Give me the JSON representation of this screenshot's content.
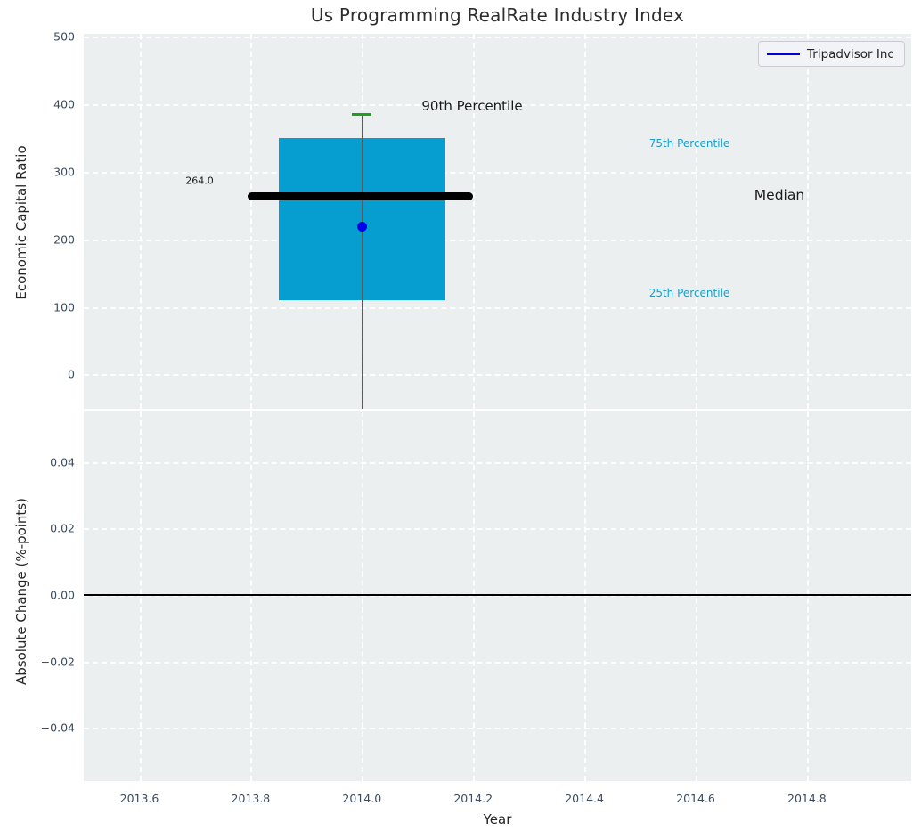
{
  "title": "Us Programming RealRate Industry Index",
  "colors": {
    "figure_bg": "#ffffff",
    "plot_bg": "#eceff0",
    "grid": "#ffffff",
    "box_fill": "#069dd1",
    "median_line": "#000000",
    "whisker": "#5a5a5a",
    "percentile_cap": "#1f9e1f",
    "company_dot": "#0000ee",
    "legend_line": "#0000dd",
    "tick_label": "#3b4c5e",
    "axis_label": "#262626",
    "annotation_cyan": "#1b9ecb",
    "annotation_dark": "#1a1a1a",
    "zero_line": "#000000"
  },
  "chart_data": [
    {
      "type": "boxplot",
      "title": "Us Programming RealRate Industry Index",
      "ylabel": "Economic Capital Ratio",
      "legend": [
        {
          "label": "Tripadvisor Inc",
          "color": "#0000dd"
        }
      ],
      "legend_position": "upper right",
      "grid": "white dashed",
      "xlim": [
        2013.5,
        2014.9875
      ],
      "ylim": [
        -51,
        504
      ],
      "yticks": [
        0,
        100,
        200,
        300,
        400,
        500
      ],
      "ytick_labels": [
        "0",
        "100",
        "200",
        "300",
        "400",
        "500"
      ],
      "xticks": [
        2013.6,
        2013.8,
        2014.0,
        2014.2,
        2014.4,
        2014.6,
        2014.8
      ],
      "xtick_labels": [
        "2013.6",
        "2013.8",
        "2014.0",
        "2014.2",
        "2014.4",
        "2014.6",
        "2014.8"
      ],
      "box": {
        "x_center": 2014.0,
        "x_left": 2013.85,
        "x_right": 2014.15,
        "q1_25th_percentile": 110,
        "q3_75th_percentile": 350,
        "median": 264.0,
        "median_label": "264.0",
        "median_line_x_left": 2013.795,
        "median_line_x_right": 2014.2,
        "p90_90th_percentile": 385,
        "whisker_low_clipped_below_axis": true,
        "company_point": {
          "name": "Tripadvisor Inc",
          "x": 2014.0,
          "y": 218
        }
      },
      "annotations": [
        {
          "text": "264.0",
          "ax": 130,
          "ay": 165,
          "size": 11,
          "color_key": "annotation_dark"
        },
        {
          "text": "90th Percentile",
          "ax": 436,
          "ay": 81,
          "size": 15,
          "color_key": "annotation_dark"
        },
        {
          "text": "75th Percentile",
          "ax": 680,
          "ay": 123,
          "size": 12,
          "color_key": "annotation_cyan"
        },
        {
          "text": "Median",
          "ax": 781,
          "ay": 181,
          "size": 15.5,
          "color_key": "annotation_dark"
        },
        {
          "text": "25th Percentile",
          "ax": 680,
          "ay": 291,
          "size": 12,
          "color_key": "annotation_cyan"
        }
      ]
    },
    {
      "type": "line",
      "ylabel": "Absolute Change (%-points)",
      "xlabel": "Year",
      "xlim": [
        2013.5,
        2014.9875
      ],
      "ylim": [
        -0.056,
        0.0552
      ],
      "yticks": [
        0.04,
        0.02,
        0.0,
        -0.02,
        -0.04
      ],
      "ytick_labels": [
        "0.04",
        "0.02",
        "0.00",
        "−0.02",
        "−0.04"
      ],
      "zero_line_y": 0.0,
      "series": []
    }
  ]
}
